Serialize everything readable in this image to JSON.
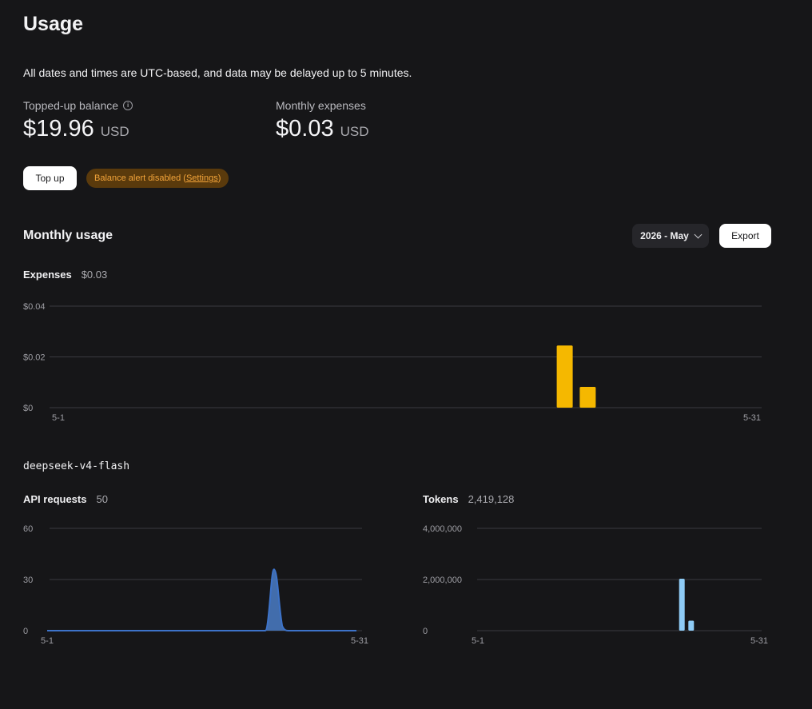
{
  "header": {
    "title": "Usage",
    "notice": "All dates and times are UTC-based, and data may be delayed up to 5 minutes."
  },
  "balance": {
    "label": "Topped-up balance",
    "amount": "$19.96",
    "currency": "USD"
  },
  "expenses_summary": {
    "label": "Monthly expenses",
    "amount": "$0.03",
    "currency": "USD"
  },
  "actions": {
    "topup_label": "Top up",
    "alert_text": "Balance alert disabled (",
    "alert_link": "Settings",
    "alert_close": ")"
  },
  "monthly": {
    "title": "Monthly usage",
    "month_selected": "2026 - May",
    "export_label": "Export"
  },
  "expenses_metric": {
    "name": "Expenses",
    "value": "$0.03"
  },
  "model": {
    "name": "deepseek-v4-flash"
  },
  "requests_metric": {
    "name": "API requests",
    "value": "50"
  },
  "tokens_metric": {
    "name": "Tokens",
    "value": "2,419,128"
  },
  "colors": {
    "expenses_bar": "#f5b800",
    "requests_area": "#3d73c9",
    "requests_fill": "#4a7cc7",
    "tokens_bar": "#8ecbf5"
  },
  "chart_data": [
    {
      "id": "expenses",
      "type": "bar",
      "x_start_label": "5-1",
      "x_end_label": "5-31",
      "days": 31,
      "ylim": [
        0,
        0.04
      ],
      "yticks": [
        {
          "value": 0,
          "label": "$0"
        },
        {
          "value": 0.02,
          "label": "$0.02"
        },
        {
          "value": 0.04,
          "label": "$0.04"
        }
      ],
      "points": [
        {
          "day": 23,
          "value": 0.0245
        },
        {
          "day": 24,
          "value": 0.0082
        }
      ],
      "grid": true
    },
    {
      "id": "requests",
      "type": "area",
      "x_start_label": "5-1",
      "x_end_label": "5-31",
      "days": 31,
      "ylim": [
        0,
        60
      ],
      "yticks": [
        {
          "value": 0,
          "label": "0"
        },
        {
          "value": 30,
          "label": "30"
        },
        {
          "value": 60,
          "label": "60"
        }
      ],
      "points": [
        {
          "day": 23,
          "value": 36
        },
        {
          "day": 24,
          "value": 14
        }
      ],
      "grid": true
    },
    {
      "id": "tokens",
      "type": "bar",
      "x_start_label": "5-1",
      "x_end_label": "5-31",
      "days": 31,
      "ylim": [
        0,
        4000000
      ],
      "yticks": [
        {
          "value": 0,
          "label": "0"
        },
        {
          "value": 2000000,
          "label": "2,000,000"
        },
        {
          "value": 4000000,
          "label": "4,000,000"
        }
      ],
      "points": [
        {
          "day": 23,
          "value": 2030000
        },
        {
          "day": 24,
          "value": 389128
        }
      ],
      "grid": true
    }
  ]
}
